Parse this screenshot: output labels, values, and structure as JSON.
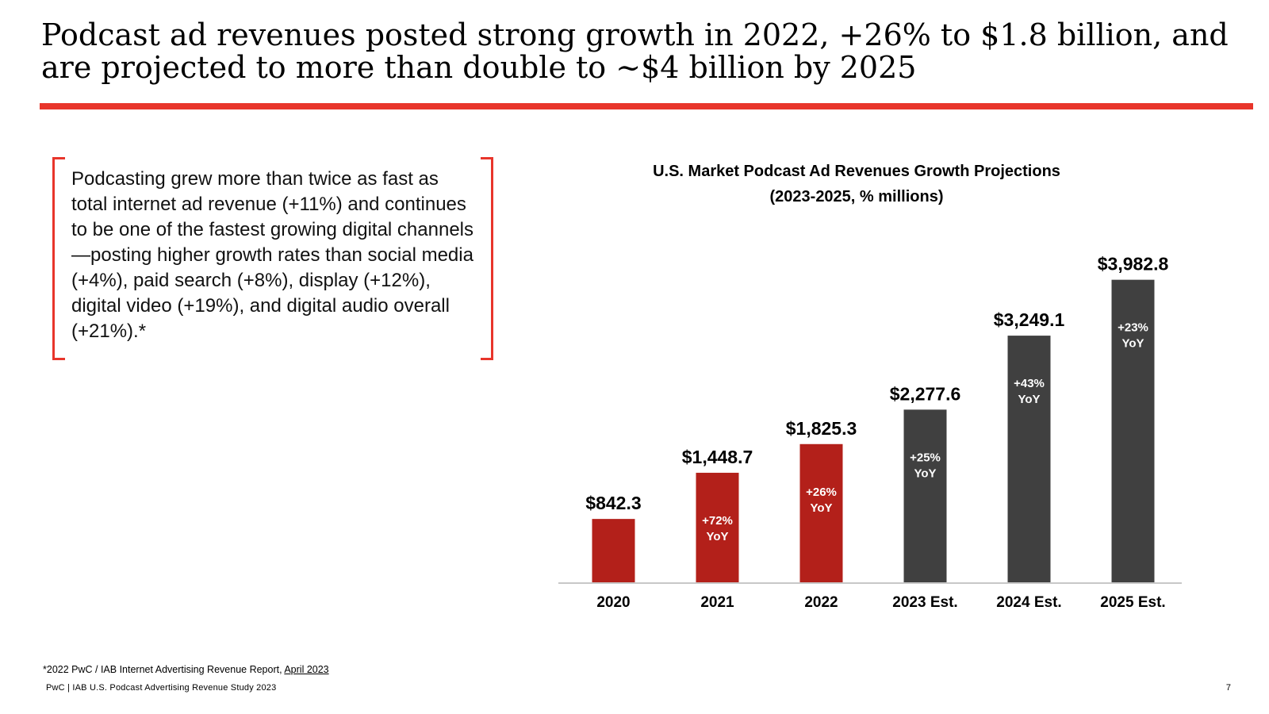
{
  "slide": {
    "title": "Podcast ad revenues posted strong growth in 2022, +26% to $1.8 billion, and are projected to more than double to ~$4 billion by 2025",
    "callout_text": "Podcasting grew more than twice as fast as total internet ad revenue (+11%) and continues to be one of the fastest growing digital channels—posting higher growth rates than social media (+4%), paid search (+8%), display (+12%), digital video (+19%), and digital audio overall (+21%).*",
    "footnote_prefix": "*2022 PwC / IAB Internet Advertising Revenue Report, ",
    "footnote_link": "April 2023",
    "footer": "PwC | IAB U.S. Podcast Advertising Revenue Study 2023",
    "page_number": "7"
  },
  "colors": {
    "accent_red": "#e8352b",
    "actual_bar": "#b3201a",
    "estimate_bar": "#404040"
  },
  "chart_data": {
    "type": "bar",
    "title": "U.S. Market Podcast Ad Revenues Growth Projections",
    "subtitle": "(2023-2025, % millions)",
    "xlabel": "",
    "ylabel": "",
    "ylim": [
      0,
      4500
    ],
    "grid": false,
    "categories": [
      "2020",
      "2021",
      "2022",
      "2023 Est.",
      "2024 Est.",
      "2025 Est."
    ],
    "values": [
      842.3,
      1448.7,
      1825.3,
      2277.6,
      3249.1,
      3982.8
    ],
    "value_labels": [
      "$842.3",
      "$1,448.7",
      "$1,825.3",
      "$2,277.6",
      "$3,249.1",
      "$3,982.8"
    ],
    "yoy_labels": [
      null,
      "+72%",
      "+26%",
      "+25%",
      "+43%",
      "+23%"
    ],
    "yoy_suffix": "YoY",
    "estimate": [
      false,
      false,
      false,
      true,
      true,
      true
    ]
  }
}
